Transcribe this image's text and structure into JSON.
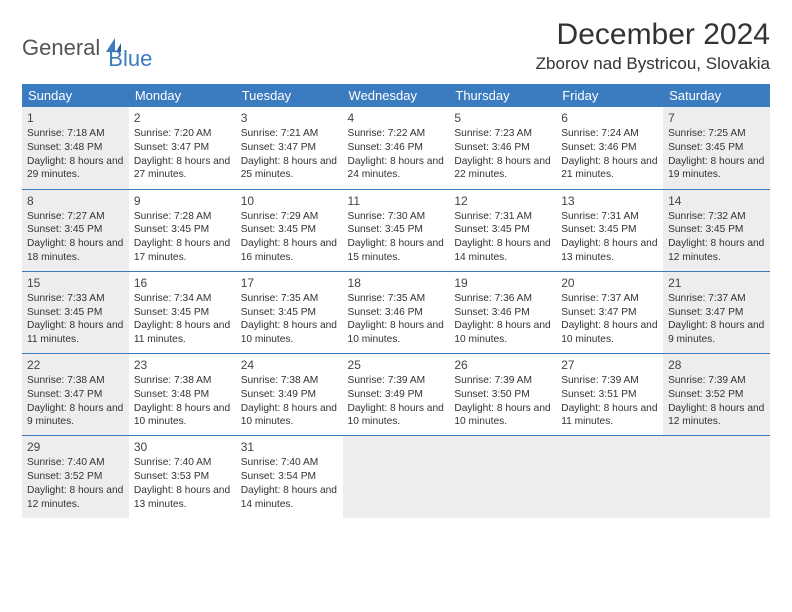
{
  "brand": {
    "part1": "General",
    "part2": "Blue"
  },
  "title": "December 2024",
  "location": "Zborov nad Bystricou, Slovakia",
  "colors": {
    "header_bg": "#3b7bbf",
    "header_fg": "#ffffff",
    "shade_bg": "#ededed",
    "row_sep": "#3b7bbf",
    "text": "#333333"
  },
  "weekdays": [
    "Sunday",
    "Monday",
    "Tuesday",
    "Wednesday",
    "Thursday",
    "Friday",
    "Saturday"
  ],
  "rows": [
    [
      {
        "n": "1",
        "sr": "Sunrise: 7:18 AM",
        "ss": "Sunset: 3:48 PM",
        "dl": "Daylight: 8 hours and 29 minutes.",
        "shade": true
      },
      {
        "n": "2",
        "sr": "Sunrise: 7:20 AM",
        "ss": "Sunset: 3:47 PM",
        "dl": "Daylight: 8 hours and 27 minutes.",
        "shade": false
      },
      {
        "n": "3",
        "sr": "Sunrise: 7:21 AM",
        "ss": "Sunset: 3:47 PM",
        "dl": "Daylight: 8 hours and 25 minutes.",
        "shade": false
      },
      {
        "n": "4",
        "sr": "Sunrise: 7:22 AM",
        "ss": "Sunset: 3:46 PM",
        "dl": "Daylight: 8 hours and 24 minutes.",
        "shade": false
      },
      {
        "n": "5",
        "sr": "Sunrise: 7:23 AM",
        "ss": "Sunset: 3:46 PM",
        "dl": "Daylight: 8 hours and 22 minutes.",
        "shade": false
      },
      {
        "n": "6",
        "sr": "Sunrise: 7:24 AM",
        "ss": "Sunset: 3:46 PM",
        "dl": "Daylight: 8 hours and 21 minutes.",
        "shade": false
      },
      {
        "n": "7",
        "sr": "Sunrise: 7:25 AM",
        "ss": "Sunset: 3:45 PM",
        "dl": "Daylight: 8 hours and 19 minutes.",
        "shade": true
      }
    ],
    [
      {
        "n": "8",
        "sr": "Sunrise: 7:27 AM",
        "ss": "Sunset: 3:45 PM",
        "dl": "Daylight: 8 hours and 18 minutes.",
        "shade": true
      },
      {
        "n": "9",
        "sr": "Sunrise: 7:28 AM",
        "ss": "Sunset: 3:45 PM",
        "dl": "Daylight: 8 hours and 17 minutes.",
        "shade": false
      },
      {
        "n": "10",
        "sr": "Sunrise: 7:29 AM",
        "ss": "Sunset: 3:45 PM",
        "dl": "Daylight: 8 hours and 16 minutes.",
        "shade": false
      },
      {
        "n": "11",
        "sr": "Sunrise: 7:30 AM",
        "ss": "Sunset: 3:45 PM",
        "dl": "Daylight: 8 hours and 15 minutes.",
        "shade": false
      },
      {
        "n": "12",
        "sr": "Sunrise: 7:31 AM",
        "ss": "Sunset: 3:45 PM",
        "dl": "Daylight: 8 hours and 14 minutes.",
        "shade": false
      },
      {
        "n": "13",
        "sr": "Sunrise: 7:31 AM",
        "ss": "Sunset: 3:45 PM",
        "dl": "Daylight: 8 hours and 13 minutes.",
        "shade": false
      },
      {
        "n": "14",
        "sr": "Sunrise: 7:32 AM",
        "ss": "Sunset: 3:45 PM",
        "dl": "Daylight: 8 hours and 12 minutes.",
        "shade": true
      }
    ],
    [
      {
        "n": "15",
        "sr": "Sunrise: 7:33 AM",
        "ss": "Sunset: 3:45 PM",
        "dl": "Daylight: 8 hours and 11 minutes.",
        "shade": true
      },
      {
        "n": "16",
        "sr": "Sunrise: 7:34 AM",
        "ss": "Sunset: 3:45 PM",
        "dl": "Daylight: 8 hours and 11 minutes.",
        "shade": false
      },
      {
        "n": "17",
        "sr": "Sunrise: 7:35 AM",
        "ss": "Sunset: 3:45 PM",
        "dl": "Daylight: 8 hours and 10 minutes.",
        "shade": false
      },
      {
        "n": "18",
        "sr": "Sunrise: 7:35 AM",
        "ss": "Sunset: 3:46 PM",
        "dl": "Daylight: 8 hours and 10 minutes.",
        "shade": false
      },
      {
        "n": "19",
        "sr": "Sunrise: 7:36 AM",
        "ss": "Sunset: 3:46 PM",
        "dl": "Daylight: 8 hours and 10 minutes.",
        "shade": false
      },
      {
        "n": "20",
        "sr": "Sunrise: 7:37 AM",
        "ss": "Sunset: 3:47 PM",
        "dl": "Daylight: 8 hours and 10 minutes.",
        "shade": false
      },
      {
        "n": "21",
        "sr": "Sunrise: 7:37 AM",
        "ss": "Sunset: 3:47 PM",
        "dl": "Daylight: 8 hours and 9 minutes.",
        "shade": true
      }
    ],
    [
      {
        "n": "22",
        "sr": "Sunrise: 7:38 AM",
        "ss": "Sunset: 3:47 PM",
        "dl": "Daylight: 8 hours and 9 minutes.",
        "shade": true
      },
      {
        "n": "23",
        "sr": "Sunrise: 7:38 AM",
        "ss": "Sunset: 3:48 PM",
        "dl": "Daylight: 8 hours and 10 minutes.",
        "shade": false
      },
      {
        "n": "24",
        "sr": "Sunrise: 7:38 AM",
        "ss": "Sunset: 3:49 PM",
        "dl": "Daylight: 8 hours and 10 minutes.",
        "shade": false
      },
      {
        "n": "25",
        "sr": "Sunrise: 7:39 AM",
        "ss": "Sunset: 3:49 PM",
        "dl": "Daylight: 8 hours and 10 minutes.",
        "shade": false
      },
      {
        "n": "26",
        "sr": "Sunrise: 7:39 AM",
        "ss": "Sunset: 3:50 PM",
        "dl": "Daylight: 8 hours and 10 minutes.",
        "shade": false
      },
      {
        "n": "27",
        "sr": "Sunrise: 7:39 AM",
        "ss": "Sunset: 3:51 PM",
        "dl": "Daylight: 8 hours and 11 minutes.",
        "shade": false
      },
      {
        "n": "28",
        "sr": "Sunrise: 7:39 AM",
        "ss": "Sunset: 3:52 PM",
        "dl": "Daylight: 8 hours and 12 minutes.",
        "shade": true
      }
    ],
    [
      {
        "n": "29",
        "sr": "Sunrise: 7:40 AM",
        "ss": "Sunset: 3:52 PM",
        "dl": "Daylight: 8 hours and 12 minutes.",
        "shade": true
      },
      {
        "n": "30",
        "sr": "Sunrise: 7:40 AM",
        "ss": "Sunset: 3:53 PM",
        "dl": "Daylight: 8 hours and 13 minutes.",
        "shade": false
      },
      {
        "n": "31",
        "sr": "Sunrise: 7:40 AM",
        "ss": "Sunset: 3:54 PM",
        "dl": "Daylight: 8 hours and 14 minutes.",
        "shade": false
      },
      {
        "empty": true
      },
      {
        "empty": true
      },
      {
        "empty": true
      },
      {
        "empty": true
      }
    ]
  ]
}
